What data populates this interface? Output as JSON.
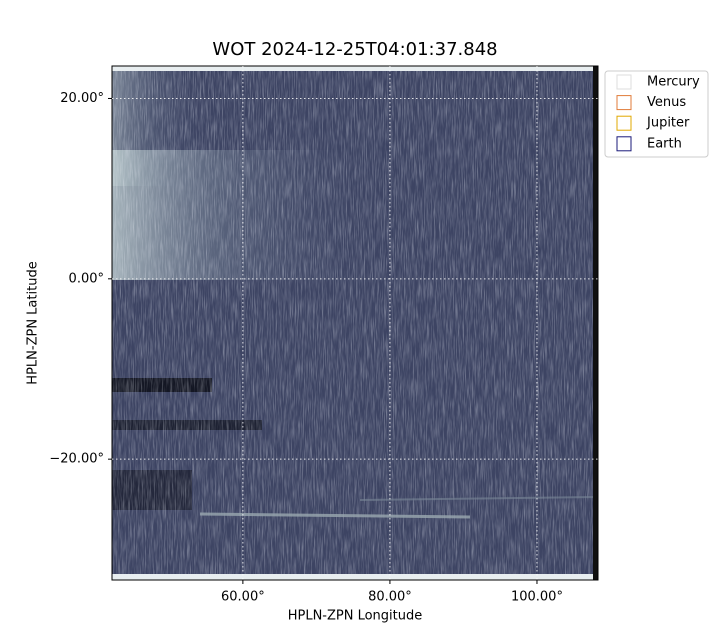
{
  "chart_data": {
    "type": "image",
    "title": "WOT 2024-12-25T04:01:37.848",
    "x_label": "HPLN-ZPN Longitude",
    "y_label": "HPLN-ZPN Latitude",
    "xlim": [
      42.2,
      108.3
    ],
    "ylim": [
      -33.4,
      23.6
    ],
    "xticks": [
      {
        "value": 60,
        "label": "60.00°"
      },
      {
        "value": 80,
        "label": "80.00°"
      },
      {
        "value": 100,
        "label": "100.00°"
      }
    ],
    "yticks": [
      {
        "value": -20,
        "label": "−20.00°"
      },
      {
        "value": 0,
        "label": "0.00°"
      },
      {
        "value": 20,
        "label": "20.00°"
      }
    ],
    "grid": true,
    "legend": "upper right outside",
    "series": [
      {
        "name": "Mercury",
        "color": "#dddddd"
      },
      {
        "name": "Venus",
        "color": "#e07b39"
      },
      {
        "name": "Jupiter",
        "color": "#e0a800"
      },
      {
        "name": "Earth",
        "color": "#1a1a7a"
      }
    ]
  }
}
